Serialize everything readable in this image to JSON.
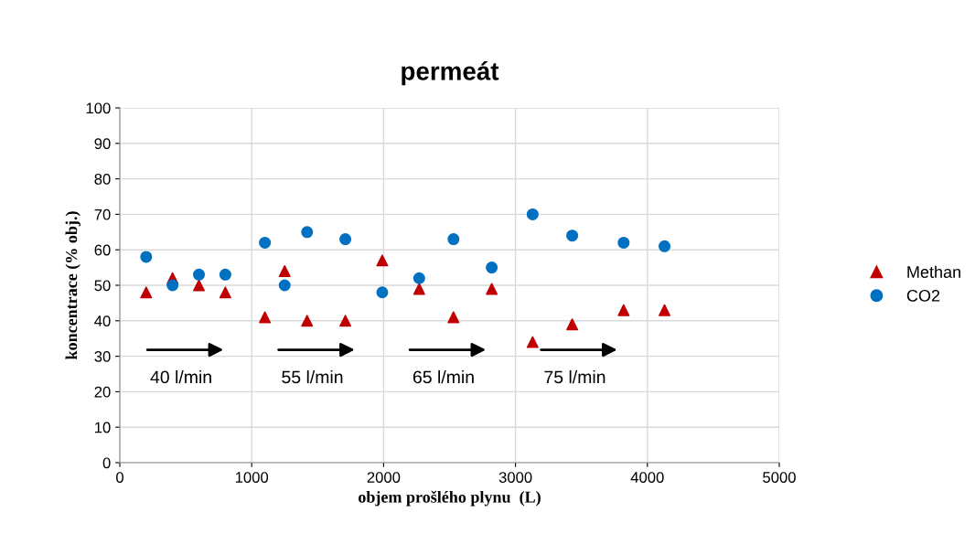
{
  "chart_data": {
    "type": "scatter",
    "title": "permeát",
    "xlabel": "objem prošlého plynu  (L)",
    "ylabel": "koncentrace (% obj.)",
    "x": [
      200,
      400,
      600,
      800,
      1100,
      1250,
      1420,
      1710,
      1990,
      2270,
      2530,
      2820,
      3130,
      3430,
      3820,
      4130
    ],
    "series": [
      {
        "name": "Methan",
        "color": "#c00000",
        "marker": "triangle",
        "values": [
          48,
          52,
          50,
          48,
          41,
          54,
          40,
          40,
          57,
          49,
          41,
          49,
          34,
          39,
          43,
          43
        ]
      },
      {
        "name": "CO2",
        "color": "#0070c0",
        "marker": "circle",
        "values": [
          58,
          50,
          53,
          53,
          62,
          50,
          65,
          63,
          48,
          52,
          63,
          55,
          70,
          64,
          62,
          61
        ]
      }
    ],
    "xlim": [
      0,
      5000
    ],
    "xticks": [
      0,
      1000,
      2000,
      3000,
      4000,
      5000
    ],
    "ylim": [
      0,
      100
    ],
    "yticks": [
      0,
      10,
      20,
      30,
      40,
      50,
      60,
      70,
      80,
      90,
      100
    ],
    "grid": true,
    "legend": "right",
    "annotations": [
      "40 l/min",
      "55 l/min",
      "65 l/min",
      "75 l/min"
    ]
  }
}
